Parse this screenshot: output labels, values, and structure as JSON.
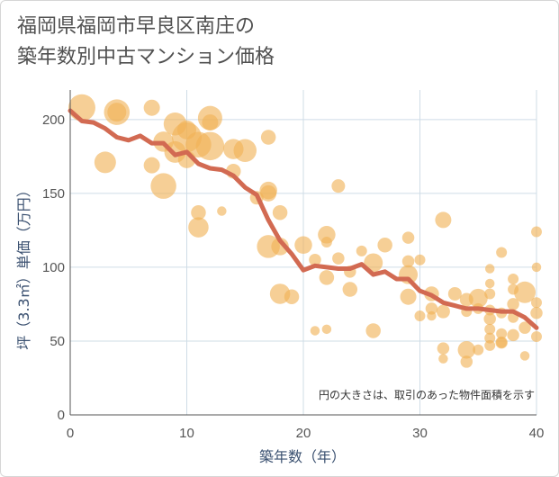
{
  "title_line1": "福岡県福岡市早良区南庄の",
  "title_line2": "築年数別中古マンション価格",
  "chart_data": {
    "type": "scatter",
    "xlabel": "築年数（年）",
    "ylabel": "坪（3.3㎡）単価（万円）",
    "note": "円の大きさは、取引のあった物件面積を示す",
    "xlim": [
      0,
      40
    ],
    "ylim": [
      0,
      220
    ],
    "xticks": [
      "0",
      "10",
      "20",
      "30",
      "40"
    ],
    "yticks": [
      "0",
      "50",
      "100",
      "150",
      "200"
    ],
    "colors": {
      "bubble": "#f0b155",
      "line": "#d26a52",
      "grid": "#cfdce6",
      "axis": "#555555"
    },
    "bubbles": [
      {
        "x": 1,
        "y": 208,
        "s": 2.0
      },
      {
        "x": 4,
        "y": 205,
        "s": 1.9
      },
      {
        "x": 4,
        "y": 205,
        "s": 1.4
      },
      {
        "x": 7,
        "y": 208,
        "s": 1.2
      },
      {
        "x": 9,
        "y": 197,
        "s": 1.7
      },
      {
        "x": 10,
        "y": 193,
        "s": 1.4
      },
      {
        "x": 12,
        "y": 201,
        "s": 1.8
      },
      {
        "x": 12,
        "y": 198,
        "s": 1.2
      },
      {
        "x": 8,
        "y": 185,
        "s": 1.5
      },
      {
        "x": 10,
        "y": 188,
        "s": 2.2
      },
      {
        "x": 11,
        "y": 183,
        "s": 1.9
      },
      {
        "x": 12,
        "y": 182,
        "s": 2.1
      },
      {
        "x": 9,
        "y": 178,
        "s": 1.6
      },
      {
        "x": 10,
        "y": 173,
        "s": 1.3
      },
      {
        "x": 14,
        "y": 180,
        "s": 1.5
      },
      {
        "x": 15,
        "y": 179,
        "s": 1.7
      },
      {
        "x": 17,
        "y": 188,
        "s": 1.1
      },
      {
        "x": 3,
        "y": 171,
        "s": 1.6
      },
      {
        "x": 7,
        "y": 169,
        "s": 1.2
      },
      {
        "x": 14,
        "y": 165,
        "s": 1.1
      },
      {
        "x": 8,
        "y": 155,
        "s": 1.9
      },
      {
        "x": 17,
        "y": 152,
        "s": 1.3
      },
      {
        "x": 17,
        "y": 150,
        "s": 1.2
      },
      {
        "x": 16,
        "y": 147,
        "s": 1.0
      },
      {
        "x": 23,
        "y": 155,
        "s": 1.0
      },
      {
        "x": 11,
        "y": 137,
        "s": 1.1
      },
      {
        "x": 13,
        "y": 138,
        "s": 0.7
      },
      {
        "x": 18,
        "y": 137,
        "s": 1.1
      },
      {
        "x": 11,
        "y": 127,
        "s": 1.5
      },
      {
        "x": 32,
        "y": 132,
        "s": 1.2
      },
      {
        "x": 22,
        "y": 122,
        "s": 1.3
      },
      {
        "x": 29,
        "y": 120,
        "s": 0.9
      },
      {
        "x": 17,
        "y": 114,
        "s": 1.7
      },
      {
        "x": 18,
        "y": 114,
        "s": 1.3
      },
      {
        "x": 20,
        "y": 115,
        "s": 1.3
      },
      {
        "x": 22,
        "y": 117,
        "s": 0.8
      },
      {
        "x": 27,
        "y": 115,
        "s": 1.1
      },
      {
        "x": 25,
        "y": 111,
        "s": 0.8
      },
      {
        "x": 37,
        "y": 110,
        "s": 0.8
      },
      {
        "x": 40,
        "y": 124,
        "s": 0.8
      },
      {
        "x": 21,
        "y": 105,
        "s": 0.9
      },
      {
        "x": 23,
        "y": 106,
        "s": 0.9
      },
      {
        "x": 26,
        "y": 103,
        "s": 1.4
      },
      {
        "x": 29,
        "y": 104,
        "s": 0.9
      },
      {
        "x": 30,
        "y": 105,
        "s": 0.8
      },
      {
        "x": 24,
        "y": 97,
        "s": 0.9
      },
      {
        "x": 29,
        "y": 95,
        "s": 1.4
      },
      {
        "x": 36,
        "y": 99,
        "s": 0.7
      },
      {
        "x": 40,
        "y": 100,
        "s": 0.7
      },
      {
        "x": 22,
        "y": 93,
        "s": 1.1
      },
      {
        "x": 24,
        "y": 85,
        "s": 1.1
      },
      {
        "x": 18,
        "y": 82,
        "s": 1.5
      },
      {
        "x": 19,
        "y": 80,
        "s": 1.1
      },
      {
        "x": 29,
        "y": 80,
        "s": 1.2
      },
      {
        "x": 31,
        "y": 82,
        "s": 1.1
      },
      {
        "x": 33,
        "y": 82,
        "s": 1.0
      },
      {
        "x": 34,
        "y": 78,
        "s": 1.0
      },
      {
        "x": 35,
        "y": 79,
        "s": 1.4
      },
      {
        "x": 36,
        "y": 82,
        "s": 0.8
      },
      {
        "x": 38,
        "y": 92,
        "s": 0.8
      },
      {
        "x": 39,
        "y": 83,
        "s": 1.6
      },
      {
        "x": 36,
        "y": 89,
        "s": 0.7
      },
      {
        "x": 38,
        "y": 85,
        "s": 0.8
      },
      {
        "x": 31,
        "y": 72,
        "s": 0.9
      },
      {
        "x": 32,
        "y": 70,
        "s": 1.0
      },
      {
        "x": 30,
        "y": 67,
        "s": 0.8
      },
      {
        "x": 31,
        "y": 67,
        "s": 0.7
      },
      {
        "x": 34,
        "y": 70,
        "s": 0.8
      },
      {
        "x": 35,
        "y": 72,
        "s": 0.8
      },
      {
        "x": 36,
        "y": 71,
        "s": 0.8
      },
      {
        "x": 36,
        "y": 65,
        "s": 0.9
      },
      {
        "x": 37,
        "y": 69,
        "s": 0.8
      },
      {
        "x": 38,
        "y": 66,
        "s": 0.8
      },
      {
        "x": 40,
        "y": 69,
        "s": 0.9
      },
      {
        "x": 38,
        "y": 75,
        "s": 0.9
      },
      {
        "x": 40,
        "y": 76,
        "s": 0.8
      },
      {
        "x": 26,
        "y": 57,
        "s": 1.1
      },
      {
        "x": 21,
        "y": 57,
        "s": 0.7
      },
      {
        "x": 22,
        "y": 58,
        "s": 0.7
      },
      {
        "x": 36,
        "y": 58,
        "s": 0.8
      },
      {
        "x": 37,
        "y": 55,
        "s": 0.8
      },
      {
        "x": 36,
        "y": 52,
        "s": 0.8
      },
      {
        "x": 38,
        "y": 54,
        "s": 0.9
      },
      {
        "x": 37,
        "y": 49,
        "s": 0.9
      },
      {
        "x": 36,
        "y": 47,
        "s": 0.8
      },
      {
        "x": 40,
        "y": 53,
        "s": 0.8
      },
      {
        "x": 39,
        "y": 59,
        "s": 0.9
      },
      {
        "x": 32,
        "y": 45,
        "s": 0.9
      },
      {
        "x": 34,
        "y": 44,
        "s": 1.3
      },
      {
        "x": 35,
        "y": 44,
        "s": 0.8
      },
      {
        "x": 37,
        "y": 49,
        "s": 0.8
      },
      {
        "x": 32,
        "y": 38,
        "s": 0.7
      },
      {
        "x": 34,
        "y": 36,
        "s": 0.9
      },
      {
        "x": 39,
        "y": 40,
        "s": 0.7
      }
    ],
    "line": {
      "x": [
        0,
        1,
        2,
        3,
        4,
        5,
        6,
        7,
        8,
        9,
        10,
        11,
        12,
        13,
        14,
        15,
        16,
        17,
        18,
        19,
        20,
        21,
        22,
        23,
        24,
        25,
        26,
        27,
        28,
        29,
        30,
        31,
        32,
        33,
        34,
        35,
        36,
        37,
        38,
        39,
        40
      ],
      "y": [
        206,
        199,
        198,
        194,
        188,
        186,
        189,
        184,
        184,
        176,
        178,
        170,
        167,
        166,
        162,
        154,
        149,
        132,
        118,
        109,
        98,
        101,
        100,
        99,
        99,
        102,
        95,
        97,
        92,
        92,
        84,
        81,
        76,
        74,
        72,
        72,
        71,
        70,
        70,
        66,
        59
      ]
    }
  }
}
